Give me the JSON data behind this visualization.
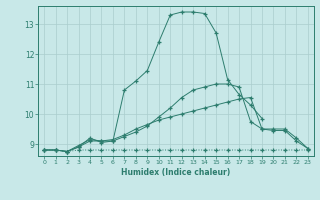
{
  "xlabel": "Humidex (Indice chaleur)",
  "x": [
    0,
    1,
    2,
    3,
    4,
    5,
    6,
    7,
    8,
    9,
    10,
    11,
    12,
    13,
    14,
    15,
    16,
    17,
    18,
    19,
    20,
    21,
    22,
    23
  ],
  "curve1": [
    8.8,
    8.8,
    8.75,
    8.8,
    8.8,
    8.8,
    8.8,
    8.8,
    8.8,
    8.8,
    8.8,
    8.8,
    8.8,
    8.8,
    8.8,
    8.8,
    8.8,
    8.8,
    8.8,
    8.8,
    8.8,
    8.8,
    8.8,
    8.8
  ],
  "curve2": [
    8.8,
    8.8,
    8.75,
    8.9,
    9.1,
    9.1,
    9.15,
    9.3,
    9.5,
    9.65,
    9.8,
    9.9,
    10.0,
    10.1,
    10.2,
    10.3,
    10.4,
    10.5,
    10.55,
    9.5,
    9.45,
    9.45,
    9.1,
    8.85
  ],
  "curve3": [
    8.8,
    8.8,
    8.75,
    8.95,
    9.15,
    9.1,
    9.1,
    9.25,
    9.4,
    9.6,
    9.9,
    10.2,
    10.55,
    10.8,
    10.9,
    11.0,
    11.0,
    10.9,
    9.75,
    9.5,
    9.5,
    9.5,
    9.2,
    8.85
  ],
  "curve4": [
    8.8,
    8.8,
    8.75,
    8.9,
    9.2,
    9.05,
    9.1,
    10.8,
    11.1,
    11.45,
    12.4,
    13.3,
    13.4,
    13.4,
    13.35,
    12.7,
    11.15,
    10.65,
    10.3,
    9.85,
    null,
    null,
    null,
    null
  ],
  "bg_color": "#c8e8e8",
  "line_color": "#2d7d6e",
  "grid_color": "#aacece",
  "ylim": [
    8.6,
    13.6
  ],
  "xlim": [
    -0.5,
    23.5
  ],
  "yticks": [
    9,
    10,
    11,
    12,
    13
  ],
  "xticks": [
    0,
    1,
    2,
    3,
    4,
    5,
    6,
    7,
    8,
    9,
    10,
    11,
    12,
    13,
    14,
    15,
    16,
    17,
    18,
    19,
    20,
    21,
    22,
    23
  ]
}
